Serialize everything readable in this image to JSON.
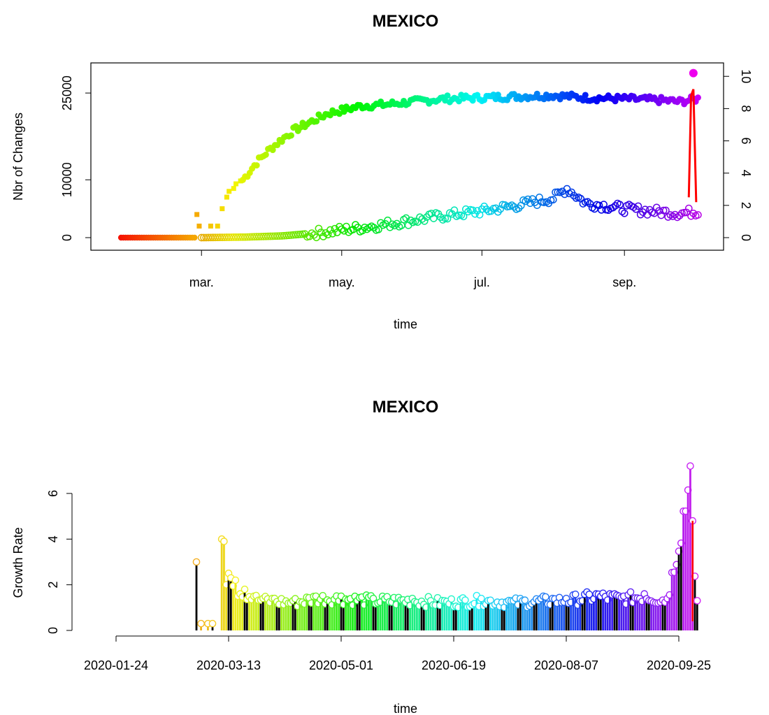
{
  "chart_data": [
    {
      "type": "scatter",
      "title": "MEXICO",
      "xlabel": "time",
      "ylabel": "Nbr of Changes",
      "x_range": [
        "2020-01-22",
        "2020-10-05"
      ],
      "ylim": [
        0,
        29000
      ],
      "y_ticks": [
        0,
        10000,
        25000
      ],
      "y_tick_labels": [
        "0",
        "10000",
        "25000"
      ],
      "x_ticks": [
        "2020-03-01",
        "2020-05-01",
        "2020-07-01",
        "2020-09-01"
      ],
      "x_tick_labels": [
        "mar.",
        "may.",
        "jul.",
        "sep."
      ],
      "right_axis": {
        "ylim": [
          0,
          10.4
        ],
        "ticks": [
          0,
          2,
          4,
          6,
          8,
          10
        ],
        "tick_labels": [
          "0",
          "2",
          "4",
          "6",
          "8",
          "10"
        ]
      },
      "grid": false,
      "color_scale": "rainbow by date (red → violet)",
      "series": [
        {
          "marker": "filled",
          "axis": "left",
          "points": [
            [
              "2020-01-26",
              0
            ],
            [
              "2020-02-05",
              0
            ],
            [
              "2020-02-15",
              0
            ],
            [
              "2020-02-25",
              0
            ],
            [
              "2020-02-28",
              4000
            ],
            [
              "2020-02-29",
              2000
            ],
            [
              "2020-03-05",
              2000
            ],
            [
              "2020-03-08",
              2000
            ],
            [
              "2020-03-10",
              5000
            ],
            [
              "2020-03-12",
              7000
            ],
            [
              "2020-03-15",
              8500
            ],
            [
              "2020-03-18",
              9500
            ],
            [
              "2020-03-21",
              11000
            ],
            [
              "2020-03-25",
              13000
            ],
            [
              "2020-03-30",
              15000
            ],
            [
              "2020-04-05",
              17000
            ],
            [
              "2020-04-10",
              18500
            ],
            [
              "2020-04-15",
              19500
            ],
            [
              "2020-04-20",
              20500
            ],
            [
              "2020-04-25",
              21500
            ],
            [
              "2020-05-01",
              22000
            ],
            [
              "2020-05-10",
              22800
            ],
            [
              "2020-05-20",
              23000
            ],
            [
              "2020-06-01",
              23500
            ],
            [
              "2020-06-15",
              24000
            ],
            [
              "2020-07-01",
              24200
            ],
            [
              "2020-07-15",
              24400
            ],
            [
              "2020-08-01",
              24600
            ],
            [
              "2020-08-15",
              24200
            ],
            [
              "2020-09-01",
              24000
            ],
            [
              "2020-09-15",
              23800
            ],
            [
              "2020-09-25",
              23500
            ],
            [
              "2020-10-03",
              24000
            ]
          ]
        },
        {
          "marker": "open-circle",
          "axis": "left",
          "points": [
            [
              "2020-01-26",
              0
            ],
            [
              "2020-02-15",
              0
            ],
            [
              "2020-03-01",
              0
            ],
            [
              "2020-03-20",
              100
            ],
            [
              "2020-04-05",
              300
            ],
            [
              "2020-04-20",
              800
            ],
            [
              "2020-05-01",
              1300
            ],
            [
              "2020-05-15",
              2000
            ],
            [
              "2020-06-01",
              3000
            ],
            [
              "2020-06-15",
              3800
            ],
            [
              "2020-07-01",
              4600
            ],
            [
              "2020-07-15",
              5500
            ],
            [
              "2020-08-01",
              6800
            ],
            [
              "2020-08-07",
              8500
            ],
            [
              "2020-08-15",
              6000
            ],
            [
              "2020-09-01",
              5000
            ],
            [
              "2020-09-15",
              4500
            ],
            [
              "2020-09-25",
              4200
            ],
            [
              "2020-10-03",
              4500
            ]
          ]
        },
        {
          "marker": "line",
          "axis": "right",
          "color": "#ff0000",
          "points": [
            [
              "2020-09-29",
              2.5
            ],
            [
              "2020-09-30",
              8.8
            ],
            [
              "2020-10-01",
              9.2
            ],
            [
              "2020-10-01",
              2.2
            ]
          ]
        },
        {
          "marker": "filled",
          "axis": "right",
          "color": "#ee00ee",
          "points": [
            [
              "2020-10-01",
              10.2
            ]
          ]
        }
      ]
    },
    {
      "type": "bar",
      "title": "MEXICO",
      "xlabel": "time",
      "ylabel": "Growth Rate",
      "x_range": [
        "2020-01-24",
        "2020-10-02"
      ],
      "ylim": [
        0,
        7.2
      ],
      "y_ticks": [
        0,
        2,
        4,
        6
      ],
      "y_tick_labels": [
        "0",
        "2",
        "4",
        "6"
      ],
      "x_ticks": [
        "2020-01-24",
        "2020-03-13",
        "2020-05-01",
        "2020-06-19",
        "2020-08-07",
        "2020-09-25"
      ],
      "x_tick_labels": [
        "2020-01-24",
        "2020-03-13",
        "2020-05-01",
        "2020-06-19",
        "2020-08-07",
        "2020-09-25"
      ],
      "grid": false,
      "color_scale": "rainbow by date, alternating black bars",
      "peaks": [
        [
          "2020-02-28",
          3.0
        ],
        [
          "2020-03-01",
          0.3
        ],
        [
          "2020-03-04",
          0.3
        ],
        [
          "2020-03-06",
          0.3
        ],
        [
          "2020-03-10",
          4.0
        ],
        [
          "2020-03-11",
          3.9
        ],
        [
          "2020-03-13",
          2.5
        ],
        [
          "2020-03-14",
          2.3
        ],
        [
          "2020-03-16",
          2.2
        ],
        [
          "2020-03-18",
          1.6
        ],
        [
          "2020-03-20",
          1.8
        ],
        [
          "2020-03-24",
          1.5
        ],
        [
          "2020-03-28",
          1.4
        ],
        [
          "2020-04-01",
          1.4
        ],
        [
          "2020-04-10",
          1.3
        ],
        [
          "2020-04-20",
          1.5
        ],
        [
          "2020-05-01",
          1.5
        ],
        [
          "2020-05-15",
          1.4
        ],
        [
          "2020-06-01",
          1.4
        ],
        [
          "2020-06-15",
          1.3
        ],
        [
          "2020-07-01",
          1.4
        ],
        [
          "2020-07-15",
          1.3
        ],
        [
          "2020-08-01",
          1.4
        ],
        [
          "2020-08-07",
          1.4
        ],
        [
          "2020-08-20",
          1.6
        ],
        [
          "2020-09-01",
          1.5
        ],
        [
          "2020-09-10",
          1.6
        ],
        [
          "2020-09-20",
          1.4
        ],
        [
          "2020-09-30",
          7.2
        ],
        [
          "2020-10-01",
          4.8
        ],
        [
          "2020-10-03",
          1.3
        ]
      ]
    }
  ]
}
